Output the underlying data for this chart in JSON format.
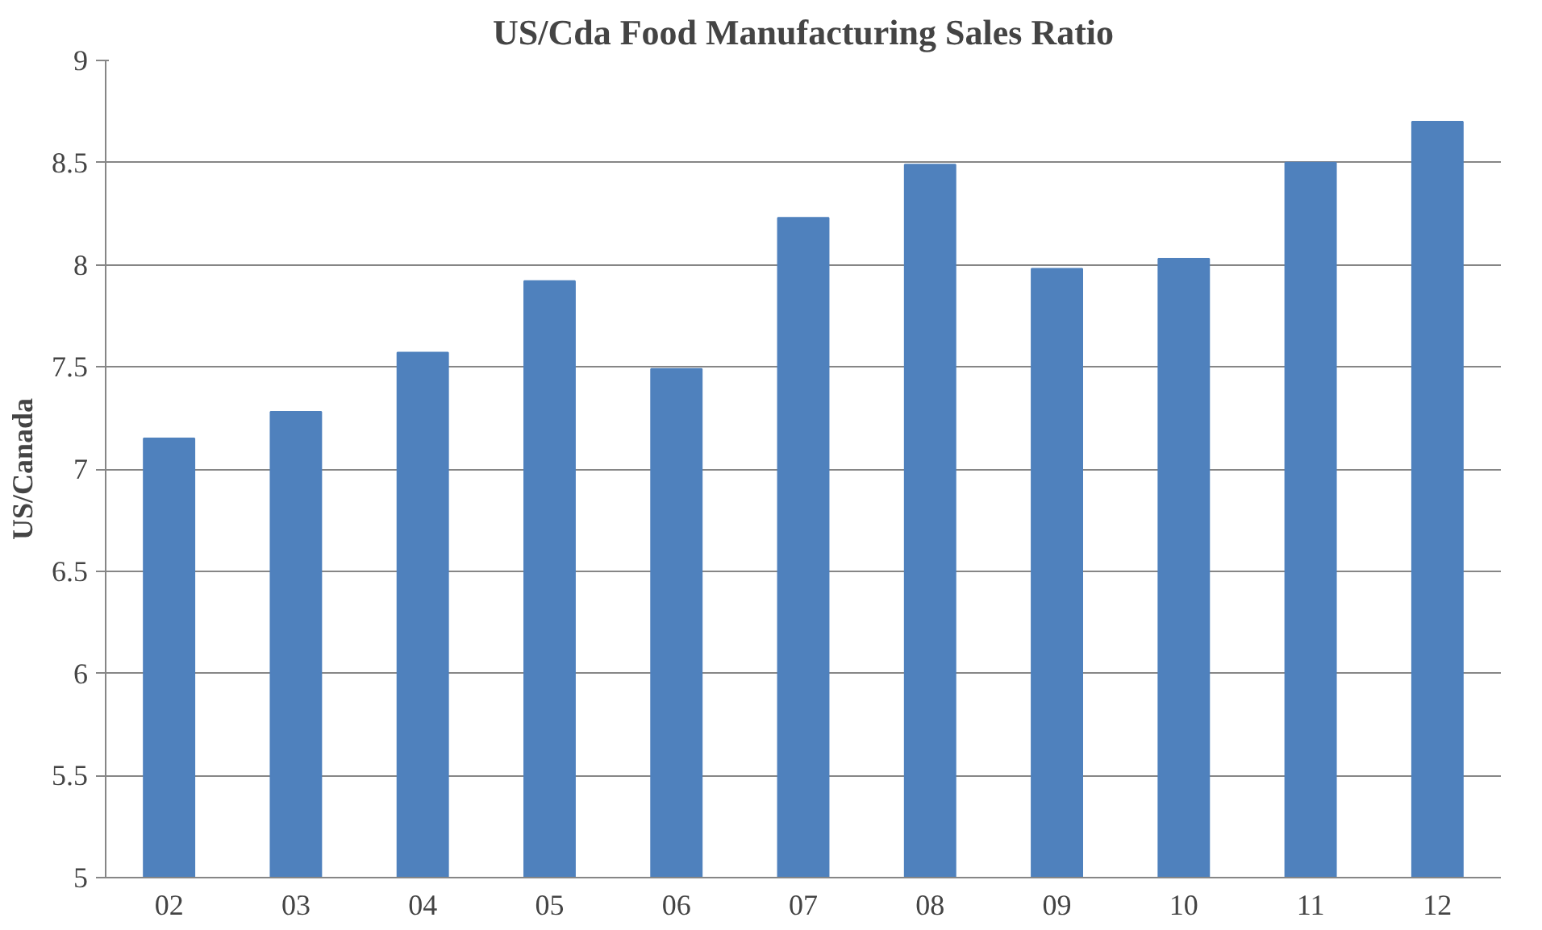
{
  "chart_data": {
    "type": "bar",
    "title": "US/Cda Food Manufacturing Sales Ratio",
    "ylabel": "US/Canada",
    "categories": [
      "02",
      "03",
      "04",
      "05",
      "06",
      "07",
      "08",
      "09",
      "10",
      "11",
      "12"
    ],
    "values": [
      7.15,
      7.28,
      7.57,
      7.92,
      7.49,
      8.23,
      8.49,
      7.98,
      8.03,
      8.5,
      8.7
    ],
    "color": "#4f81bd",
    "ylim": [
      5,
      9
    ],
    "yticks": [
      5,
      5.5,
      6,
      6.5,
      7,
      7.5,
      8,
      8.5,
      9
    ],
    "grid": "y"
  }
}
